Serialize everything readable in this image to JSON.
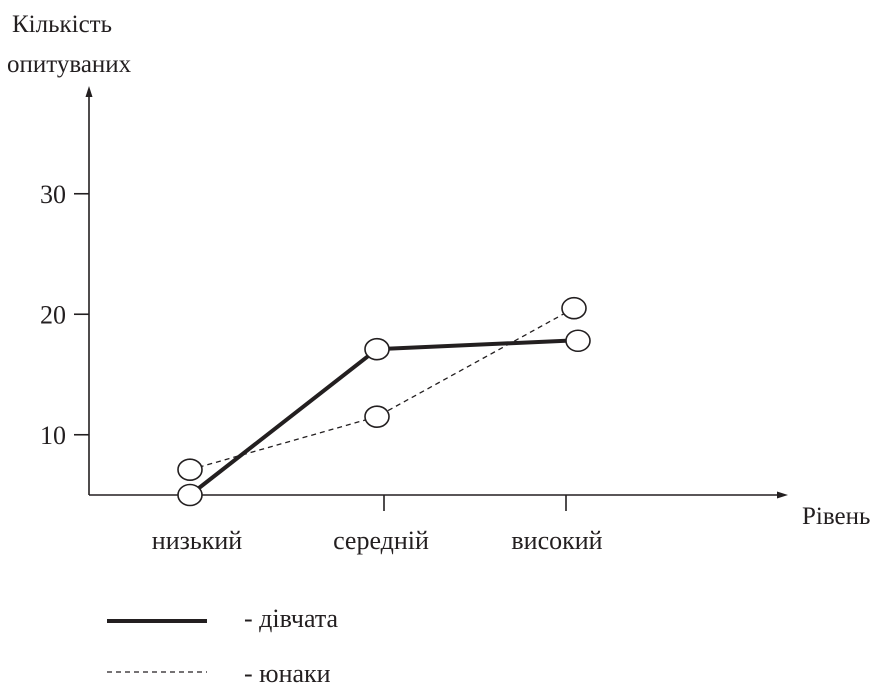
{
  "chart_data": {
    "type": "line",
    "ylabel_lines": [
      "Кількість",
      "опитуваних"
    ],
    "xlabel": "Рівень",
    "categories": [
      "низький",
      "середній",
      "високий"
    ],
    "y_ticks": [
      10,
      20,
      30
    ],
    "ylim": [
      5,
      35
    ],
    "grid": false,
    "series": [
      {
        "name": "дівчата",
        "values": [
          5,
          17.1,
          17.8
        ],
        "style": "solid",
        "legend_label": "- дівчата"
      },
      {
        "name": "юнаки",
        "values": [
          7.1,
          11.5,
          20.5
        ],
        "style": "dashed",
        "legend_label": "- юнаки"
      }
    ],
    "legend_placement": "bottom-left",
    "colors": {
      "ink": "#231f20",
      "marker_fill": "#ffffff"
    }
  }
}
